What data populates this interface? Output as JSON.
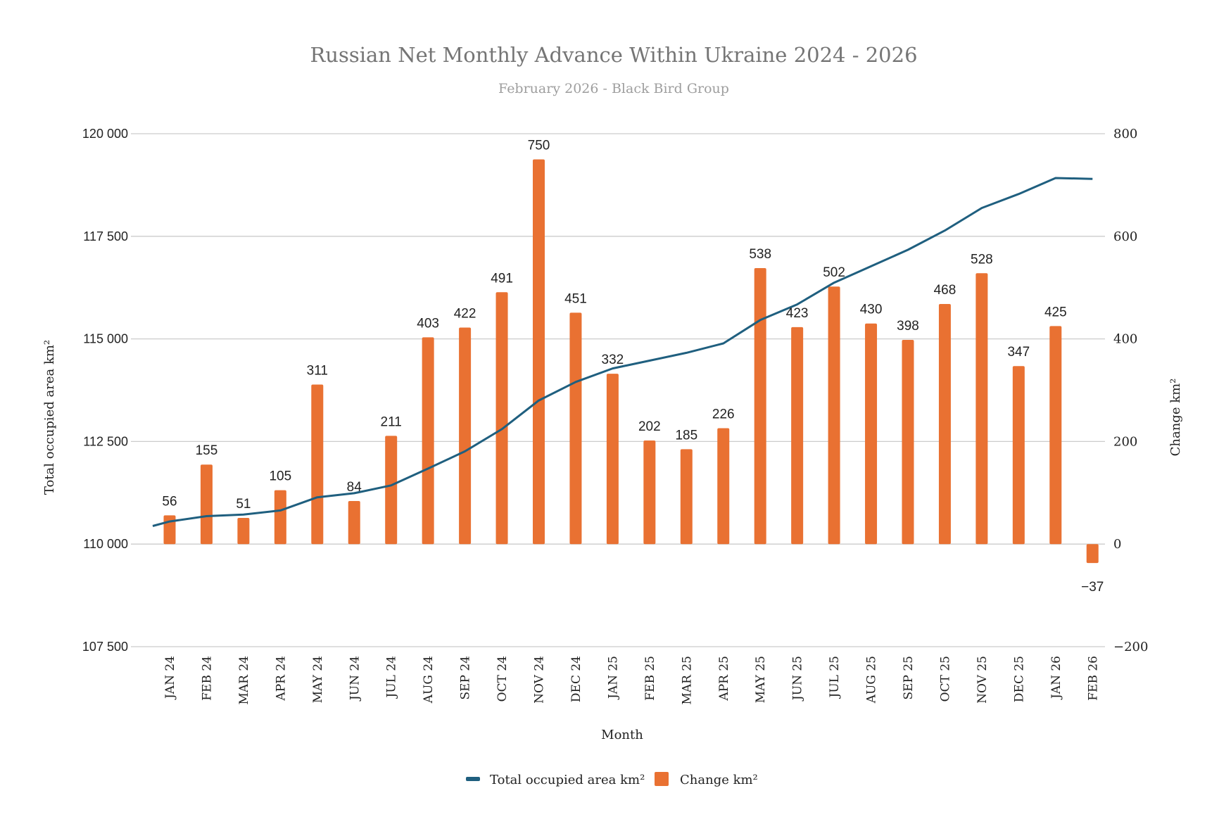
{
  "chart_data": {
    "type": "bar+line",
    "title": "Russian Net Monthly Advance Within Ukraine 2024 - 2026",
    "subtitle": "February 2026 - Black Bird Group",
    "xlabel": "Month",
    "ylabel_left": "Total occupied area km²",
    "ylabel_right": "Change km²",
    "categories": [
      "JAN 24",
      "FEB 24",
      "MAR 24",
      "APR 24",
      "MAY 24",
      "JUN 24",
      "JUL 24",
      "AUG 24",
      "SEP 24",
      "OCT 24",
      "NOV 24",
      "DEC 24",
      "JAN 25",
      "FEB 25",
      "MAR 25",
      "APR 25",
      "MAY 25",
      "JUN 25",
      "JUL 25",
      "AUG 25",
      "SEP 25",
      "OCT 25",
      "NOV 25",
      "DEC 25",
      "JAN 26",
      "FEB 26"
    ],
    "series": [
      {
        "name": "Total occupied area km²",
        "type": "line",
        "axis": "left",
        "color": "#1f5f7f",
        "values": [
          110550,
          110680,
          110720,
          110820,
          111140,
          111240,
          111430,
          111840,
          112260,
          112800,
          113500,
          113950,
          114280,
          114470,
          114660,
          114890,
          115460,
          115840,
          116370,
          116770,
          117170,
          117640,
          118190,
          118530,
          118920,
          118900
        ]
      },
      {
        "name": "Change km²",
        "type": "bar",
        "axis": "right",
        "color": "#e97132",
        "values": [
          56,
          155,
          51,
          105,
          311,
          84,
          211,
          403,
          422,
          491,
          750,
          451,
          332,
          202,
          185,
          226,
          538,
          423,
          502,
          430,
          398,
          468,
          528,
          347,
          425,
          -37
        ]
      }
    ],
    "left_axis": {
      "range": [
        107500,
        120000
      ],
      "ticks": [
        "107 500",
        "110 000",
        "112 500",
        "115 000",
        "117 500",
        "120 000"
      ]
    },
    "right_axis": {
      "range": [
        -200,
        800
      ],
      "ticks": [
        "−200",
        "0",
        "200",
        "400",
        "600",
        "800"
      ]
    },
    "grid": true,
    "legend_position": "bottom"
  }
}
